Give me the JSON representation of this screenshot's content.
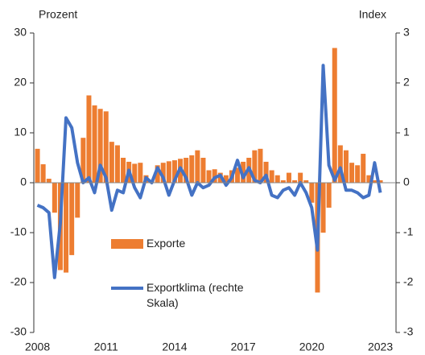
{
  "chart_data": {
    "type": "bar",
    "y_label": "Prozent",
    "y2_label": "Index",
    "categories": [
      "2008",
      null,
      null,
      null,
      null,
      null,
      null,
      null,
      null,
      null,
      null,
      null,
      "2011",
      null,
      null,
      null,
      null,
      null,
      null,
      null,
      null,
      null,
      null,
      null,
      "2014",
      null,
      null,
      null,
      null,
      null,
      null,
      null,
      null,
      null,
      null,
      null,
      "2017",
      null,
      null,
      null,
      null,
      null,
      null,
      null,
      null,
      null,
      null,
      null,
      "2020",
      null,
      null,
      null,
      null,
      null,
      null,
      null,
      null,
      null,
      null,
      null,
      "2023"
    ],
    "ylim": [
      -30,
      30
    ],
    "yticks": [
      -30,
      -20,
      -10,
      0,
      10,
      20,
      30
    ],
    "y2lim": [
      -3,
      3
    ],
    "y2ticks": [
      -3,
      -2,
      -1,
      0,
      1,
      2,
      3
    ],
    "series": [
      {
        "name": "Exporte",
        "type": "bar",
        "color": "#ed7d31",
        "values": [
          6.8,
          3.7,
          0.8,
          -6,
          -17.5,
          -18,
          -14.5,
          -7,
          9,
          17.5,
          15.5,
          14.8,
          14.3,
          8.2,
          7.5,
          5,
          4.2,
          3.8,
          4,
          1.5,
          0.5,
          3.5,
          4,
          4.3,
          4.5,
          4.8,
          5,
          5.5,
          6.5,
          5,
          2.5,
          2.7,
          2,
          1.5,
          2.5,
          3,
          4.2,
          5,
          6.5,
          6.8,
          4.2,
          2.5,
          1.5,
          0.5,
          2,
          0.5,
          2,
          0.5,
          -4,
          -22,
          -10,
          -5,
          27,
          7.5,
          6.5,
          4,
          3.5,
          5.8,
          1.5,
          0.5,
          0.5
        ]
      },
      {
        "name": "Exportklima (rechte Skala)",
        "type": "line",
        "axis": "y2",
        "color": "#4472c4",
        "values": [
          -0.45,
          -0.5,
          -0.6,
          -1.9,
          -0.8,
          1.3,
          1.1,
          0.4,
          0,
          0.1,
          -0.2,
          0.35,
          0.1,
          -0.55,
          -0.15,
          -0.2,
          0.25,
          -0.1,
          -0.3,
          0.1,
          0,
          0.3,
          0.1,
          -0.25,
          0.05,
          0.3,
          0.1,
          -0.25,
          0,
          -0.1,
          -0.05,
          0.1,
          0.15,
          -0.05,
          0.1,
          0.45,
          0.1,
          0.3,
          0.05,
          0,
          0.15,
          -0.25,
          -0.3,
          -0.15,
          -0.1,
          -0.25,
          0,
          -0.2,
          -0.5,
          -1.35,
          2.35,
          0.35,
          0.05,
          0.3,
          -0.15,
          -0.15,
          -0.2,
          -0.3,
          -0.25,
          0.4,
          -0.2
        ]
      }
    ]
  }
}
